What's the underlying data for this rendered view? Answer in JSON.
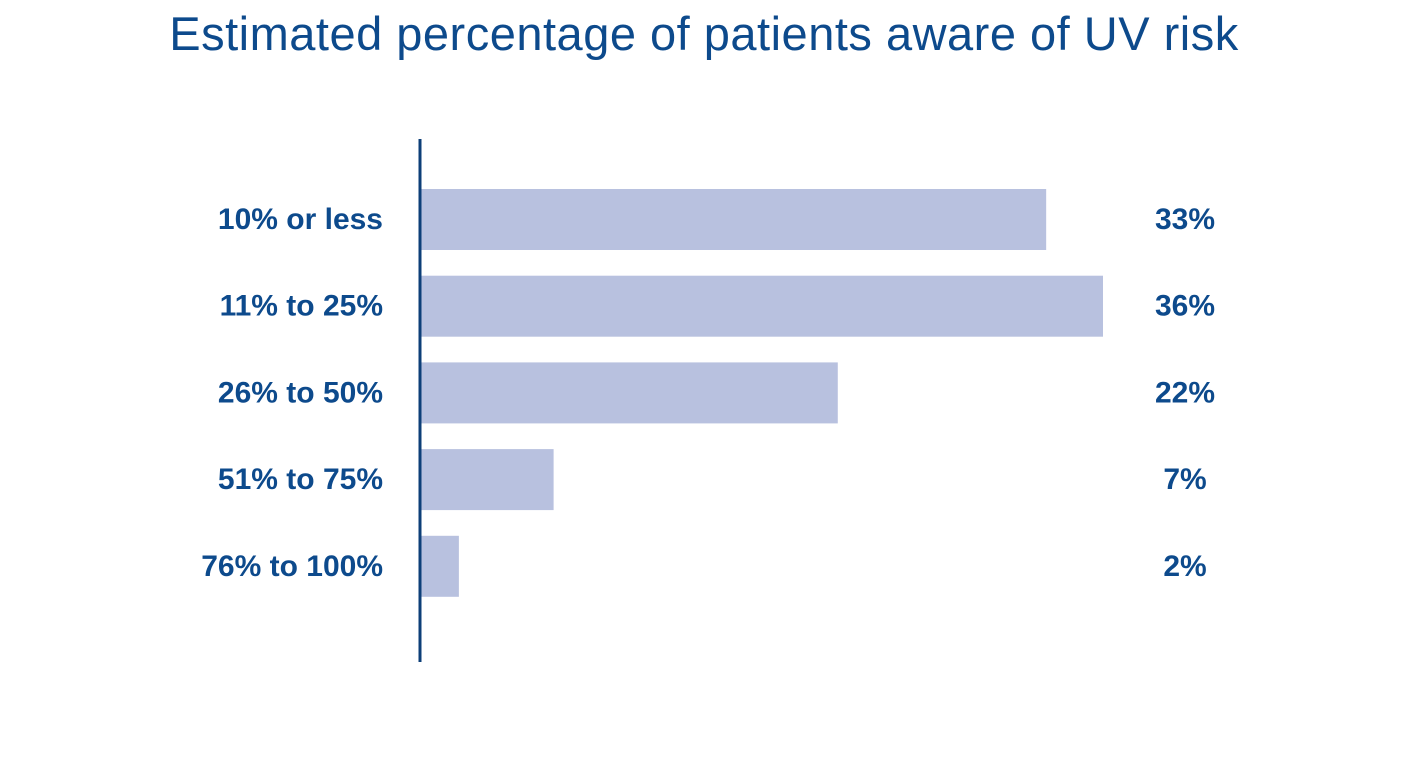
{
  "colors": {
    "title": "#0d4a8c",
    "text": "#0d4a8c",
    "bar": "#b8c1df",
    "axis": "#0d3f78"
  },
  "chart_data": {
    "type": "bar",
    "orientation": "horizontal",
    "title": "Estimated percentage of patients aware of UV risk",
    "categories": [
      "10% or less",
      "11% to 25%",
      "26% to 50%",
      "51% to 75%",
      "76% to 100%"
    ],
    "values": [
      33,
      36,
      22,
      7,
      2
    ],
    "value_labels": [
      "33%",
      "36%",
      "22%",
      "7%",
      "2%"
    ],
    "unit": "%",
    "xlim": [
      0,
      36
    ],
    "grid": false,
    "legend": "none"
  }
}
